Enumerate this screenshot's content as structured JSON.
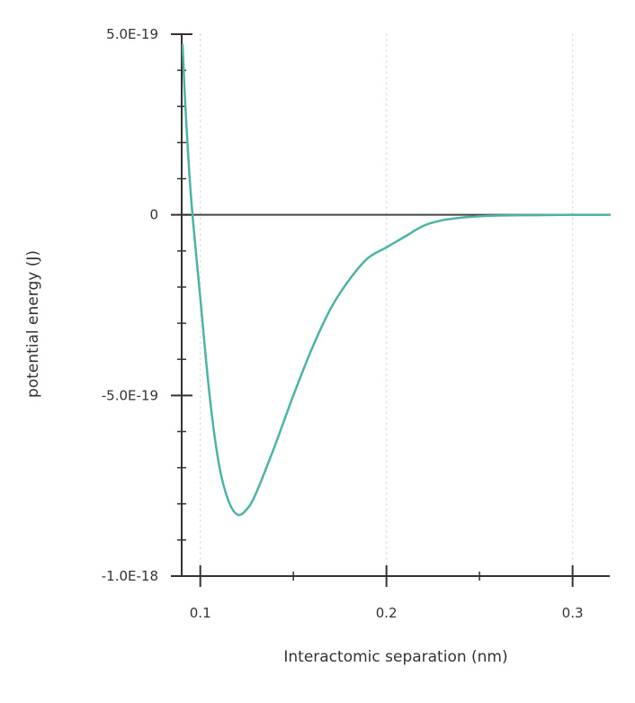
{
  "chart_data": {
    "type": "line",
    "title": "",
    "xlabel": "Interactomic separation (nm)",
    "ylabel": "potential energy (J)",
    "xlim": [
      0.09,
      0.32
    ],
    "ylim": [
      -1e-18,
      5e-19
    ],
    "x_ticks": [
      {
        "value": 0.1,
        "label": "0.1"
      },
      {
        "value": 0.2,
        "label": "0.2"
      },
      {
        "value": 0.3,
        "label": "0.3"
      }
    ],
    "x_minor_ticks": [
      0.15,
      0.25
    ],
    "y_ticks": [
      {
        "value": 5e-19,
        "label": "5.0E-19"
      },
      {
        "value": 0,
        "label": "0"
      },
      {
        "value": -5e-19,
        "label": "-5.0E-19"
      },
      {
        "value": -1e-18,
        "label": "-1.0E-18"
      }
    ],
    "y_minor_step": 1e-19,
    "grid": "vertical dotted at major x ticks",
    "series": [
      {
        "name": "",
        "color": "#4cb3a7",
        "x": [
          0.0905,
          0.092,
          0.095,
          0.1,
          0.105,
          0.11,
          0.115,
          0.12,
          0.125,
          0.13,
          0.14,
          0.15,
          0.16,
          0.17,
          0.18,
          0.19,
          0.2,
          0.21,
          0.22,
          0.23,
          0.24,
          0.25,
          0.26,
          0.28,
          0.3,
          0.32
        ],
        "y": [
          4.7e-19,
          3e-19,
          5e-20,
          -2.3e-19,
          -5e-19,
          -6.9e-19,
          -7.9e-19,
          -8.3e-19,
          -8.15e-19,
          -7.7e-19,
          -6.4e-19,
          -5e-19,
          -3.7e-19,
          -2.6e-19,
          -1.8e-19,
          -1.2e-19,
          -9e-20,
          -6e-20,
          -3e-20,
          -1.5e-20,
          -8e-21,
          -4e-21,
          -2e-21,
          -1e-21,
          0,
          0
        ]
      }
    ]
  }
}
